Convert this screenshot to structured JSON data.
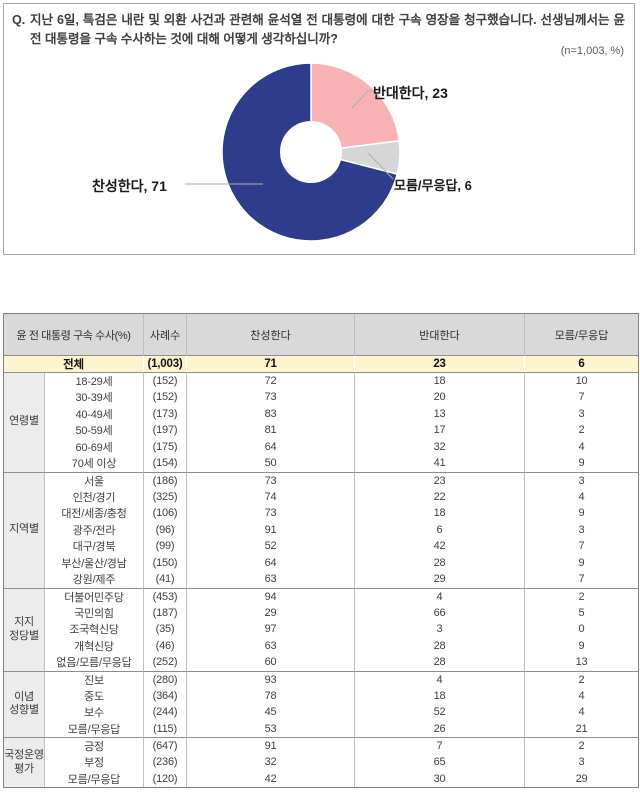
{
  "question": {
    "prefix": "Q.",
    "text": "지난 6일, 특검은 내란 및 외환 사건과 관련해 윤석열 전 대통령에 대한 구속 영장을 청구했습니다. 선생님께서는 윤 전 대통령을 구속 수사하는 것에 대해 어떻게 생각하십니까?",
    "sample_note": "(n=1,003, %)"
  },
  "chart_data": {
    "type": "pie",
    "subtype": "donut",
    "start_angle_deg": 0,
    "direction": "clockwise",
    "hole_ratio": 0.34,
    "n": 1003,
    "unit": "%",
    "slices": [
      {
        "label": "반대한다",
        "value": 23,
        "color": "#F8B2B5",
        "display": "반대한다, 23"
      },
      {
        "label": "모름/무응답",
        "value": 6,
        "color": "#D6D6D6",
        "display": "모름/무응답, 6"
      },
      {
        "label": "찬성한다",
        "value": 71,
        "color": "#2F3B8B",
        "display": "찬성한다, 71"
      }
    ]
  },
  "table": {
    "headers": [
      "윤 전 대통령 구속 수사(%)",
      "사례수",
      "찬성한다",
      "반대한다",
      "모름/무응답"
    ],
    "total_row": {
      "label": "전체",
      "n": "(1,003)",
      "values": [
        71,
        23,
        6
      ]
    },
    "groups": [
      {
        "label": "연령별",
        "rows": [
          {
            "label": "18-29세",
            "n": "(152)",
            "values": [
              72,
              18,
              10
            ]
          },
          {
            "label": "30-39세",
            "n": "(152)",
            "values": [
              73,
              20,
              7
            ]
          },
          {
            "label": "40-49세",
            "n": "(173)",
            "values": [
              83,
              13,
              3
            ]
          },
          {
            "label": "50-59세",
            "n": "(197)",
            "values": [
              81,
              17,
              2
            ]
          },
          {
            "label": "60-69세",
            "n": "(175)",
            "values": [
              64,
              32,
              4
            ]
          },
          {
            "label": "70세 이상",
            "n": "(154)",
            "values": [
              50,
              41,
              9
            ]
          }
        ]
      },
      {
        "label": "지역별",
        "rows": [
          {
            "label": "서울",
            "n": "(186)",
            "values": [
              73,
              23,
              3
            ]
          },
          {
            "label": "인천/경기",
            "n": "(325)",
            "values": [
              74,
              22,
              4
            ]
          },
          {
            "label": "대전/세종/충청",
            "n": "(106)",
            "values": [
              73,
              18,
              9
            ]
          },
          {
            "label": "광주/전라",
            "n": "(96)",
            "values": [
              91,
              6,
              3
            ]
          },
          {
            "label": "대구/경북",
            "n": "(99)",
            "values": [
              52,
              42,
              7
            ]
          },
          {
            "label": "부산/울산/경남",
            "n": "(150)",
            "values": [
              64,
              28,
              9
            ]
          },
          {
            "label": "강원/제주",
            "n": "(41)",
            "values": [
              63,
              29,
              7
            ]
          }
        ]
      },
      {
        "label": "지지\n정당별",
        "rows": [
          {
            "label": "더불어민주당",
            "n": "(453)",
            "values": [
              94,
              4,
              2
            ]
          },
          {
            "label": "국민의힘",
            "n": "(187)",
            "values": [
              29,
              66,
              5
            ]
          },
          {
            "label": "조국혁신당",
            "n": "(35)",
            "values": [
              97,
              3,
              0
            ]
          },
          {
            "label": "개혁신당",
            "n": "(46)",
            "values": [
              63,
              28,
              9
            ]
          },
          {
            "label": "없음/모름/무응답",
            "n": "(252)",
            "values": [
              60,
              28,
              13
            ]
          }
        ]
      },
      {
        "label": "이념\n성향별",
        "rows": [
          {
            "label": "진보",
            "n": "(280)",
            "values": [
              93,
              4,
              2
            ]
          },
          {
            "label": "중도",
            "n": "(364)",
            "values": [
              78,
              18,
              4
            ]
          },
          {
            "label": "보수",
            "n": "(244)",
            "values": [
              45,
              52,
              4
            ]
          },
          {
            "label": "모름/무응답",
            "n": "(115)",
            "values": [
              53,
              26,
              21
            ]
          }
        ]
      },
      {
        "label": "국정운영\n평가",
        "rows": [
          {
            "label": "긍정",
            "n": "(647)",
            "values": [
              91,
              7,
              2
            ]
          },
          {
            "label": "부정",
            "n": "(236)",
            "values": [
              32,
              65,
              3
            ]
          },
          {
            "label": "모름/무응답",
            "n": "(120)",
            "values": [
              42,
              30,
              29
            ]
          }
        ]
      }
    ]
  }
}
